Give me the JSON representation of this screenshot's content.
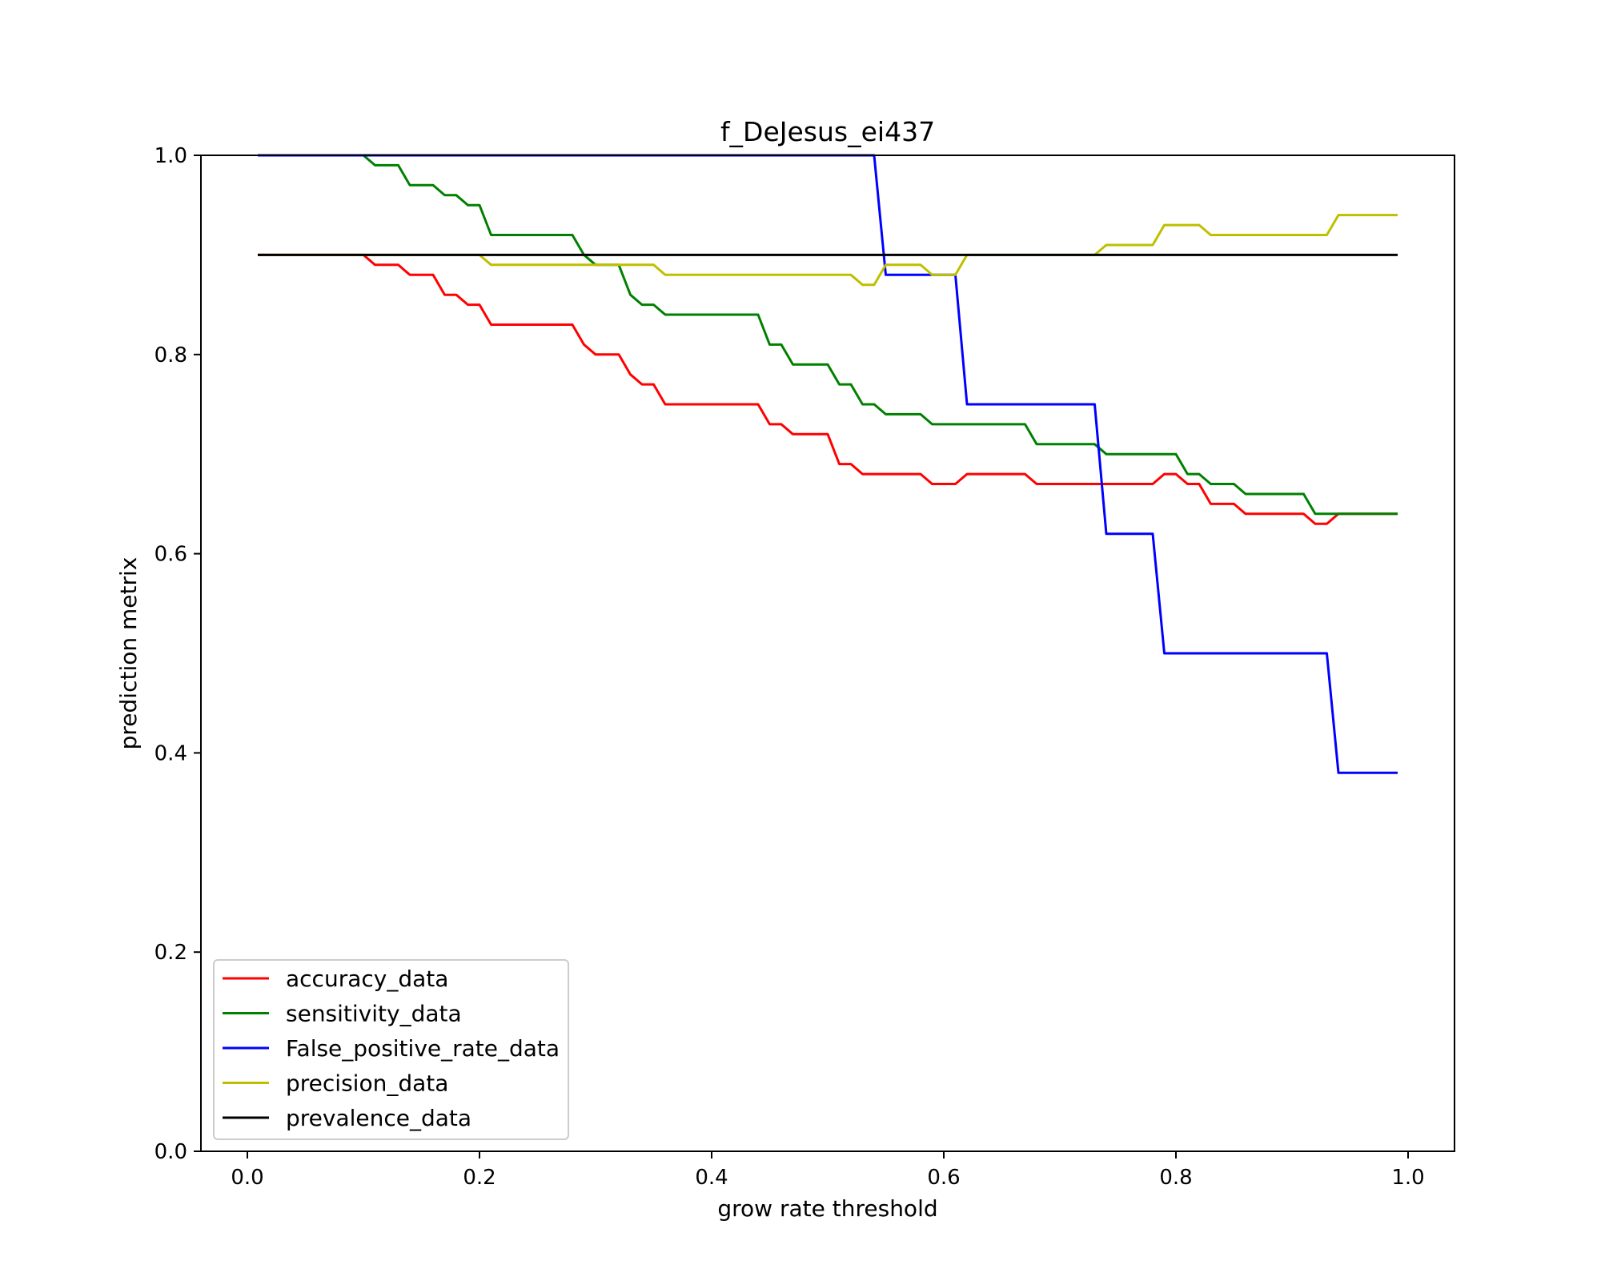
{
  "chart_data": {
    "type": "line",
    "title": "f_DeJesus_ei437",
    "xlabel": "grow rate threshold",
    "ylabel": "prediction metrix",
    "xlim": [
      -0.04,
      1.04
    ],
    "ylim": [
      0.0,
      1.0
    ],
    "xticks": [
      0.0,
      0.2,
      0.4,
      0.6,
      0.8,
      1.0
    ],
    "xtick_labels": [
      "0.0",
      "0.2",
      "0.4",
      "0.6",
      "0.8",
      "1.0"
    ],
    "yticks": [
      0.0,
      0.2,
      0.4,
      0.6,
      0.8,
      1.0
    ],
    "ytick_labels": [
      "0.0",
      "0.2",
      "0.4",
      "0.6",
      "0.8",
      "1.0"
    ],
    "grid": false,
    "legend_position": "lower-left",
    "series": [
      {
        "name": "accuracy_data",
        "color": "#ff0000",
        "points": [
          [
            0.01,
            0.9
          ],
          [
            0.1,
            0.9
          ],
          [
            0.11,
            0.89
          ],
          [
            0.13,
            0.89
          ],
          [
            0.14,
            0.88
          ],
          [
            0.16,
            0.88
          ],
          [
            0.17,
            0.86
          ],
          [
            0.18,
            0.86
          ],
          [
            0.19,
            0.85
          ],
          [
            0.2,
            0.85
          ],
          [
            0.21,
            0.83
          ],
          [
            0.28,
            0.83
          ],
          [
            0.29,
            0.81
          ],
          [
            0.3,
            0.8
          ],
          [
            0.32,
            0.8
          ],
          [
            0.33,
            0.78
          ],
          [
            0.34,
            0.77
          ],
          [
            0.35,
            0.77
          ],
          [
            0.36,
            0.75
          ],
          [
            0.44,
            0.75
          ],
          [
            0.45,
            0.73
          ],
          [
            0.46,
            0.73
          ],
          [
            0.47,
            0.72
          ],
          [
            0.5,
            0.72
          ],
          [
            0.51,
            0.69
          ],
          [
            0.52,
            0.69
          ],
          [
            0.53,
            0.68
          ],
          [
            0.58,
            0.68
          ],
          [
            0.59,
            0.67
          ],
          [
            0.61,
            0.67
          ],
          [
            0.62,
            0.68
          ],
          [
            0.67,
            0.68
          ],
          [
            0.68,
            0.67
          ],
          [
            0.78,
            0.67
          ],
          [
            0.79,
            0.68
          ],
          [
            0.8,
            0.68
          ],
          [
            0.81,
            0.67
          ],
          [
            0.82,
            0.67
          ],
          [
            0.83,
            0.65
          ],
          [
            0.85,
            0.65
          ],
          [
            0.86,
            0.64
          ],
          [
            0.91,
            0.64
          ],
          [
            0.92,
            0.63
          ],
          [
            0.93,
            0.63
          ],
          [
            0.94,
            0.64
          ],
          [
            0.99,
            0.64
          ]
        ]
      },
      {
        "name": "sensitivity_data",
        "color": "#008000",
        "points": [
          [
            0.01,
            1.0
          ],
          [
            0.1,
            1.0
          ],
          [
            0.11,
            0.99
          ],
          [
            0.13,
            0.99
          ],
          [
            0.14,
            0.97
          ],
          [
            0.16,
            0.97
          ],
          [
            0.17,
            0.96
          ],
          [
            0.18,
            0.96
          ],
          [
            0.19,
            0.95
          ],
          [
            0.2,
            0.95
          ],
          [
            0.21,
            0.92
          ],
          [
            0.28,
            0.92
          ],
          [
            0.29,
            0.9
          ],
          [
            0.3,
            0.89
          ],
          [
            0.32,
            0.89
          ],
          [
            0.33,
            0.86
          ],
          [
            0.34,
            0.85
          ],
          [
            0.35,
            0.85
          ],
          [
            0.36,
            0.84
          ],
          [
            0.44,
            0.84
          ],
          [
            0.45,
            0.81
          ],
          [
            0.46,
            0.81
          ],
          [
            0.47,
            0.79
          ],
          [
            0.5,
            0.79
          ],
          [
            0.51,
            0.77
          ],
          [
            0.52,
            0.77
          ],
          [
            0.53,
            0.75
          ],
          [
            0.54,
            0.75
          ],
          [
            0.55,
            0.74
          ],
          [
            0.58,
            0.74
          ],
          [
            0.59,
            0.73
          ],
          [
            0.67,
            0.73
          ],
          [
            0.68,
            0.71
          ],
          [
            0.73,
            0.71
          ],
          [
            0.74,
            0.7
          ],
          [
            0.8,
            0.7
          ],
          [
            0.81,
            0.68
          ],
          [
            0.82,
            0.68
          ],
          [
            0.83,
            0.67
          ],
          [
            0.85,
            0.67
          ],
          [
            0.86,
            0.66
          ],
          [
            0.91,
            0.66
          ],
          [
            0.92,
            0.64
          ],
          [
            0.99,
            0.64
          ]
        ]
      },
      {
        "name": "False_positive_rate_data",
        "color": "#0000ff",
        "points": [
          [
            0.01,
            1.0
          ],
          [
            0.54,
            1.0
          ],
          [
            0.55,
            0.88
          ],
          [
            0.61,
            0.88
          ],
          [
            0.62,
            0.75
          ],
          [
            0.73,
            0.75
          ],
          [
            0.74,
            0.62
          ],
          [
            0.78,
            0.62
          ],
          [
            0.79,
            0.5
          ],
          [
            0.93,
            0.5
          ],
          [
            0.94,
            0.38
          ],
          [
            0.99,
            0.38
          ]
        ]
      },
      {
        "name": "precision_data",
        "color": "#bfbf00",
        "points": [
          [
            0.01,
            0.9
          ],
          [
            0.2,
            0.9
          ],
          [
            0.21,
            0.89
          ],
          [
            0.32,
            0.89
          ],
          [
            0.35,
            0.89
          ],
          [
            0.36,
            0.88
          ],
          [
            0.52,
            0.88
          ],
          [
            0.53,
            0.87
          ],
          [
            0.54,
            0.87
          ],
          [
            0.55,
            0.89
          ],
          [
            0.58,
            0.89
          ],
          [
            0.59,
            0.88
          ],
          [
            0.61,
            0.88
          ],
          [
            0.62,
            0.9
          ],
          [
            0.73,
            0.9
          ],
          [
            0.74,
            0.91
          ],
          [
            0.78,
            0.91
          ],
          [
            0.79,
            0.93
          ],
          [
            0.82,
            0.93
          ],
          [
            0.83,
            0.92
          ],
          [
            0.93,
            0.92
          ],
          [
            0.94,
            0.94
          ],
          [
            0.99,
            0.94
          ]
        ]
      },
      {
        "name": "prevalence_data",
        "color": "#000000",
        "points": [
          [
            0.01,
            0.9
          ],
          [
            0.99,
            0.9
          ]
        ]
      }
    ]
  }
}
